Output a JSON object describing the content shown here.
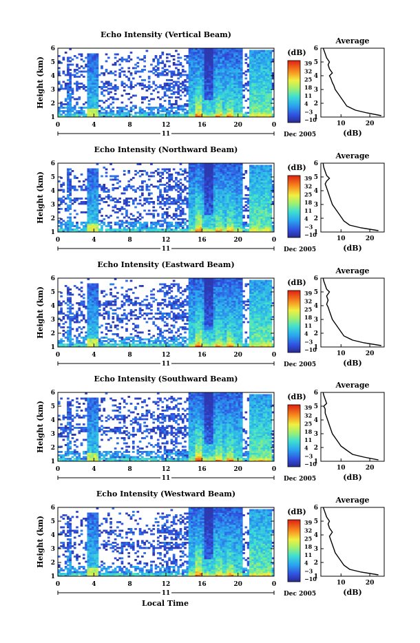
{
  "figure": {
    "xlabel": "Local Time",
    "date_label": "Dec 2005",
    "day_label": "11",
    "colorbar_unit": "(dB)",
    "colorbar_ticks": [
      "39",
      "32",
      "25",
      "18",
      "11",
      "4",
      "−3",
      "−10"
    ],
    "average_title": "Average",
    "average_xlabel": "(dB)"
  },
  "chart_data": [
    {
      "type": "heatmap",
      "title": "Echo Intensity (Vertical Beam)",
      "ylabel": "Height (km)",
      "xlabel": "",
      "xticks": [
        "0",
        "4",
        "8",
        "12",
        "16",
        "20",
        "0"
      ],
      "yticks": [
        "1",
        "2",
        "3",
        "4",
        "5",
        "6"
      ],
      "xlim": [
        0,
        24
      ],
      "ylim": [
        1,
        6
      ],
      "clim": [
        -10,
        39
      ],
      "profile": {
        "type": "line",
        "title": "Average",
        "xlabel": "(dB)",
        "xticks": [
          "10",
          "20"
        ],
        "xlim": [
          3,
          25
        ],
        "ylim": [
          1,
          6
        ],
        "x": [
          24,
          19,
          15,
          12,
          11,
          10,
          9,
          8,
          7.5,
          7,
          6.5,
          6,
          7,
          6,
          5.5,
          6,
          5,
          4.5,
          4,
          3.8
        ],
        "y": [
          1.1,
          1.3,
          1.5,
          1.8,
          2.1,
          2.4,
          2.7,
          3.0,
          3.3,
          3.5,
          3.8,
          4.0,
          4.2,
          4.5,
          4.8,
          5.0,
          5.3,
          5.6,
          5.9,
          6.0
        ]
      }
    },
    {
      "type": "heatmap",
      "title": "Echo Intensity (Northward Beam)",
      "ylabel": "Height (km)",
      "xlabel": "",
      "xticks": [
        "0",
        "4",
        "8",
        "12",
        "16",
        "20",
        "0"
      ],
      "yticks": [
        "1",
        "2",
        "3",
        "4",
        "5",
        "6"
      ],
      "xlim": [
        0,
        24
      ],
      "ylim": [
        1,
        6
      ],
      "clim": [
        -10,
        39
      ],
      "profile": {
        "type": "line",
        "title": "Average",
        "xlabel": "(dB)",
        "xticks": [
          "10",
          "20"
        ],
        "xlim": [
          3,
          25
        ],
        "ylim": [
          1,
          6
        ],
        "x": [
          23,
          17,
          13,
          11,
          10,
          9,
          8,
          7,
          6.5,
          6,
          5.5,
          5,
          4.5,
          5,
          6,
          5,
          4.5,
          4,
          3.8
        ],
        "y": [
          1.1,
          1.3,
          1.5,
          1.8,
          2.1,
          2.4,
          2.7,
          3.0,
          3.3,
          3.6,
          3.9,
          4.2,
          4.5,
          4.7,
          4.9,
          5.1,
          5.4,
          5.7,
          6.0
        ]
      }
    },
    {
      "type": "heatmap",
      "title": "Echo Intensity (Eastward Beam)",
      "ylabel": "Height (km)",
      "xlabel": "",
      "xticks": [
        "0",
        "4",
        "8",
        "12",
        "16",
        "20",
        "0"
      ],
      "yticks": [
        "1",
        "2",
        "3",
        "4",
        "5",
        "6"
      ],
      "xlim": [
        0,
        24
      ],
      "ylim": [
        1,
        6
      ],
      "clim": [
        -10,
        39
      ],
      "profile": {
        "type": "line",
        "title": "Average",
        "xlabel": "(dB)",
        "xticks": [
          "10",
          "20"
        ],
        "xlim": [
          3,
          25
        ],
        "ylim": [
          1,
          6
        ],
        "x": [
          24,
          18,
          14,
          11,
          10,
          9,
          8,
          7,
          6.5,
          6,
          5.5,
          5,
          5.5,
          5,
          6,
          5,
          4.5,
          4,
          3.8
        ],
        "y": [
          1.1,
          1.3,
          1.5,
          1.8,
          2.1,
          2.4,
          2.7,
          3.0,
          3.3,
          3.6,
          3.9,
          4.1,
          4.4,
          4.7,
          5.0,
          5.2,
          5.5,
          5.8,
          6.0
        ]
      }
    },
    {
      "type": "heatmap",
      "title": "Echo Intensity (Southward Beam)",
      "ylabel": "Height (km)",
      "xlabel": "",
      "xticks": [
        "0",
        "4",
        "8",
        "12",
        "16",
        "20",
        "0"
      ],
      "yticks": [
        "1",
        "2",
        "3",
        "4",
        "5",
        "6"
      ],
      "xlim": [
        0,
        24
      ],
      "ylim": [
        1,
        6
      ],
      "clim": [
        -10,
        39
      ],
      "profile": {
        "type": "line",
        "title": "Average",
        "xlabel": "(dB)",
        "xticks": [
          "10",
          "20"
        ],
        "xlim": [
          3,
          25
        ],
        "ylim": [
          1,
          6
        ],
        "x": [
          23,
          18,
          14,
          12,
          10,
          9,
          8,
          7,
          6.5,
          6,
          5.5,
          5,
          4.5,
          4.5,
          4,
          5,
          4.5,
          4,
          3.8
        ],
        "y": [
          1.1,
          1.3,
          1.5,
          1.8,
          2.1,
          2.4,
          2.7,
          3.0,
          3.3,
          3.6,
          3.9,
          4.2,
          4.5,
          4.8,
          5.0,
          5.2,
          5.5,
          5.8,
          6.0
        ]
      }
    },
    {
      "type": "heatmap",
      "title": "Echo Intensity (Westward Beam)",
      "ylabel": "Height (km)",
      "xlabel": "Local Time",
      "xticks": [
        "0",
        "4",
        "8",
        "12",
        "16",
        "20",
        "0"
      ],
      "yticks": [
        "1",
        "2",
        "3",
        "4",
        "5",
        "6"
      ],
      "xlim": [
        0,
        24
      ],
      "ylim": [
        1,
        6
      ],
      "clim": [
        -10,
        39
      ],
      "profile": {
        "type": "line",
        "title": "Average",
        "xlabel": "(dB)",
        "xticks": [
          "10",
          "20"
        ],
        "xlim": [
          3,
          25
        ],
        "ylim": [
          1,
          6
        ],
        "x": [
          23,
          17,
          13,
          11,
          10,
          9,
          8,
          7.5,
          7,
          6.5,
          6,
          7,
          6,
          5.5,
          6,
          5,
          4.5,
          4,
          3.8
        ],
        "y": [
          1.1,
          1.3,
          1.5,
          1.8,
          2.1,
          2.4,
          2.7,
          3.0,
          3.3,
          3.6,
          3.9,
          4.2,
          4.5,
          4.8,
          5.0,
          5.3,
          5.6,
          5.9,
          6.0
        ]
      }
    }
  ]
}
